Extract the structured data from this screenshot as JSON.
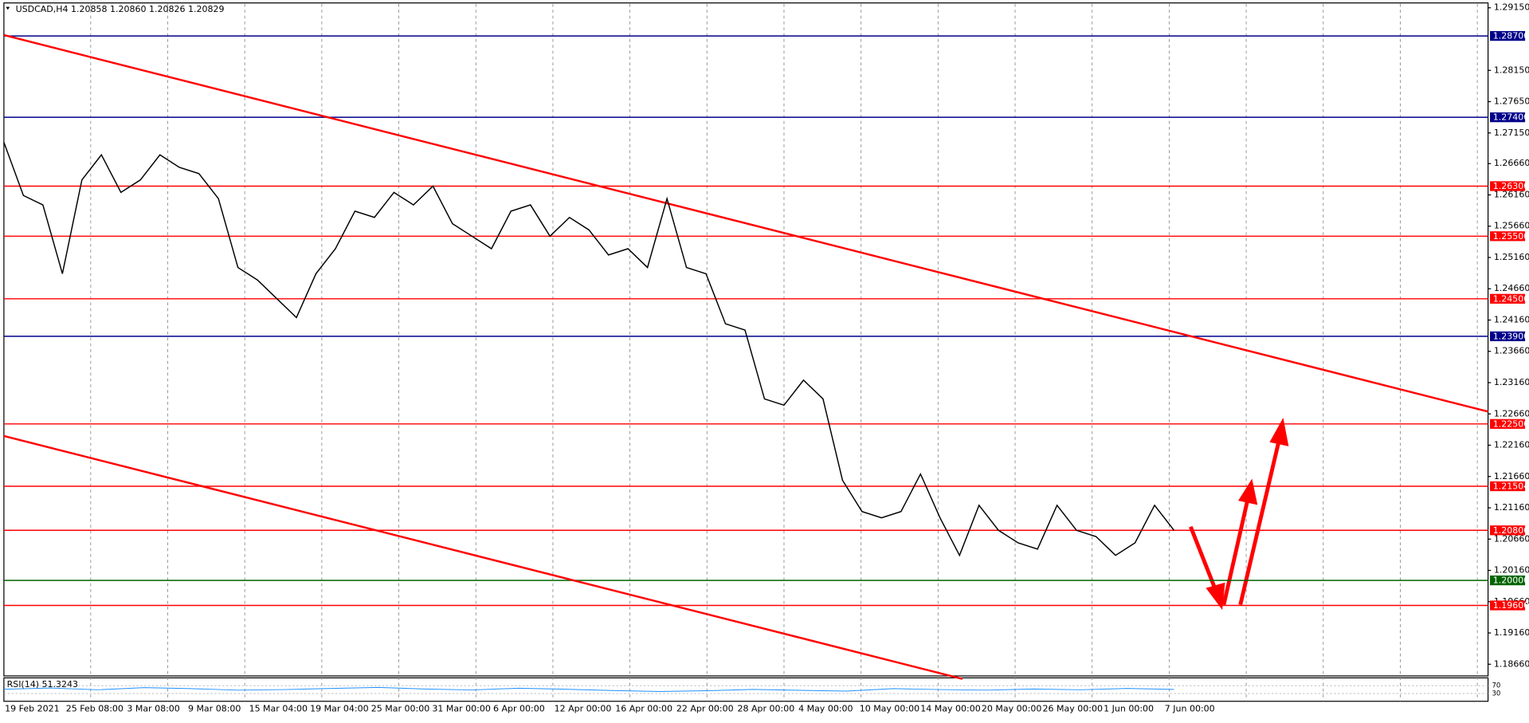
{
  "chart_data": {
    "type": "line",
    "title": "USDCAD,H4  1.20858 1.20860 1.20826 1.20829",
    "x_labels": [
      "19 Feb 2021",
      "25 Feb 08:00",
      "3 Mar 08:00",
      "9 Mar 08:00",
      "15 Mar 04:00",
      "19 Mar 04:00",
      "25 Mar 00:00",
      "31 Mar 00:00",
      "6 Apr 00:00",
      "12 Apr 00:00",
      "16 Apr 00:00",
      "22 Apr 00:00",
      "28 Apr 00:00",
      "4 May 00:00",
      "10 May 00:00",
      "14 May 00:00",
      "20 May 00:00",
      "26 May 00:00",
      "1 Jun 00:00",
      "7 Jun 00:00"
    ],
    "series": [
      {
        "name": "USDCAD",
        "color": "#000000",
        "values": [
          1.27,
          1.2615,
          1.26,
          1.249,
          1.264,
          1.268,
          1.262,
          1.264,
          1.268,
          1.266,
          1.265,
          1.261,
          1.25,
          1.248,
          1.245,
          1.242,
          1.249,
          1.253,
          1.259,
          1.258,
          1.262,
          1.26,
          1.263,
          1.257,
          1.255,
          1.253,
          1.259,
          1.26,
          1.255,
          1.258,
          1.256,
          1.252,
          1.253,
          1.25,
          1.261,
          1.25,
          1.249,
          1.241,
          1.24,
          1.229,
          1.228,
          1.232,
          1.229,
          1.216,
          1.211,
          1.21,
          1.211,
          1.217,
          1.21,
          1.204,
          1.212,
          1.208,
          1.206,
          1.205,
          1.212,
          1.208,
          1.207,
          1.204,
          1.206,
          1.212,
          1.208
        ]
      }
    ],
    "ylim": [
      1.18489,
      1.29212
    ],
    "yticks": [
      {
        "value": 1.2915,
        "label": "1.29150"
      },
      {
        "value": 1.2815,
        "label": "1.28150"
      },
      {
        "value": 1.2765,
        "label": "1.27650"
      },
      {
        "value": 1.2715,
        "label": "1.27150"
      },
      {
        "value": 1.2666,
        "label": "1.26660"
      },
      {
        "value": 1.2616,
        "label": "1.26160"
      },
      {
        "value": 1.2566,
        "label": "1.25660"
      },
      {
        "value": 1.2516,
        "label": "1.25160"
      },
      {
        "value": 1.2466,
        "label": "1.24660"
      },
      {
        "value": 1.2416,
        "label": "1.24160"
      },
      {
        "value": 1.2366,
        "label": "1.23660"
      },
      {
        "value": 1.2316,
        "label": "1.23160"
      },
      {
        "value": 1.2266,
        "label": "1.22660"
      },
      {
        "value": 1.2216,
        "label": "1.22160"
      },
      {
        "value": 1.2166,
        "label": "1.21660"
      },
      {
        "value": 1.2116,
        "label": "1.21160"
      },
      {
        "value": 1.2066,
        "label": "1.20660"
      },
      {
        "value": 1.2016,
        "label": "1.20160"
      },
      {
        "value": 1.1966,
        "label": "1.19660"
      },
      {
        "value": 1.1916,
        "label": "1.19160"
      },
      {
        "value": 1.1866,
        "label": "1.18660"
      }
    ],
    "levels": [
      {
        "value": 1.287,
        "label": "1.28700",
        "color": "#00008b"
      },
      {
        "value": 1.274,
        "label": "1.27400",
        "color": "#00008b"
      },
      {
        "value": 1.263,
        "label": "1.26300",
        "color": "#ff0000"
      },
      {
        "value": 1.255,
        "label": "1.25500",
        "color": "#ff0000"
      },
      {
        "value": 1.245,
        "label": "1.24500",
        "color": "#ff0000"
      },
      {
        "value": 1.239,
        "label": "1.23900",
        "color": "#00008b"
      },
      {
        "value": 1.225,
        "label": "1.22500",
        "color": "#ff0000"
      },
      {
        "value": 1.21504,
        "label": "1.21504",
        "color": "#ff0000"
      },
      {
        "value": 1.208,
        "label": "1.20800",
        "color": "#ff0000"
      },
      {
        "value": 1.2,
        "label": "1.20000",
        "color": "#006400"
      },
      {
        "value": 1.196,
        "label": "1.19600",
        "color": "#ff0000"
      }
    ],
    "trend_lines": [
      {
        "color": "#ff0000",
        "x": [
          0,
          76.1
        ],
        "y": [
          1.28714,
          1.22697
        ]
      },
      {
        "color": "#ff0000",
        "x": [
          0,
          49.15
        ],
        "y": [
          1.22307,
          1.18426
        ]
      }
    ],
    "rsi": {
      "label": "RSI(14) 51.3243",
      "color": "#1e90ff",
      "ylim": [
        0,
        100
      ],
      "yticks": [
        {
          "value": 70,
          "label": "70"
        },
        {
          "value": 30,
          "label": "30"
        }
      ],
      "values": [
        52,
        58,
        49,
        60,
        55,
        47,
        50,
        56,
        61,
        53,
        48,
        57,
        52,
        45,
        40,
        44,
        51,
        46,
        42,
        55,
        50,
        47,
        53,
        49,
        56,
        51
      ]
    }
  }
}
